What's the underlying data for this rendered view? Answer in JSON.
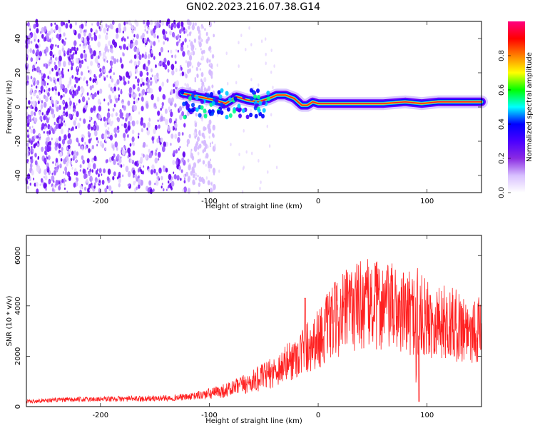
{
  "title": "GN02.2023.216.07.38.G14",
  "chart_data": [
    {
      "type": "heatmap",
      "xlabel": "Height of straight line (km)",
      "ylabel": "Frequency (Hz)",
      "xlim": [
        -268,
        150
      ],
      "ylim": [
        -50,
        50
      ],
      "xticks": [
        -200,
        -100,
        0,
        100
      ],
      "xtick_labels": [
        "-200",
        "-100",
        "0",
        "100"
      ],
      "yticks": [
        -40,
        -20,
        0,
        20,
        40
      ],
      "ytick_labels": [
        "-40",
        "-20",
        "0",
        "20",
        "40"
      ],
      "colorbar": {
        "label": "Normalized spectral amplitude",
        "range": [
          0,
          1
        ],
        "ticks": [
          0.0,
          0.2,
          0.4,
          0.6,
          0.8
        ],
        "tick_labels": [
          "0.0",
          "0.2",
          "0.4",
          "0.6",
          "0.8"
        ],
        "colors": [
          "#ffffff",
          "#d8c0ff",
          "#8a2be2",
          "#4b00ff",
          "#0000ff",
          "#00ffff",
          "#00ff00",
          "#ffff00",
          "#ff8000",
          "#ff0000",
          "#ff0080"
        ]
      },
      "noise_region_x": [
        -268,
        -115
      ],
      "ridge": [
        {
          "x": -125,
          "y": 8
        },
        {
          "x": -110,
          "y": 6
        },
        {
          "x": -95,
          "y": 4
        },
        {
          "x": -85,
          "y": 2
        },
        {
          "x": -75,
          "y": 6
        },
        {
          "x": -65,
          "y": 4
        },
        {
          "x": -55,
          "y": 3
        },
        {
          "x": -45,
          "y": 5
        },
        {
          "x": -38,
          "y": 7
        },
        {
          "x": -30,
          "y": 7
        },
        {
          "x": -22,
          "y": 5
        },
        {
          "x": -15,
          "y": 1
        },
        {
          "x": -10,
          "y": 1
        },
        {
          "x": -5,
          "y": 3
        },
        {
          "x": 0,
          "y": 2
        },
        {
          "x": 20,
          "y": 2
        },
        {
          "x": 60,
          "y": 2
        },
        {
          "x": 80,
          "y": 3
        },
        {
          "x": 95,
          "y": 2
        },
        {
          "x": 110,
          "y": 3
        },
        {
          "x": 130,
          "y": 3
        },
        {
          "x": 150,
          "y": 3
        }
      ]
    },
    {
      "type": "line",
      "xlabel": "Height of straight line (km)",
      "ylabel": "SNR (10 * v/v)",
      "xlim": [
        -268,
        150
      ],
      "ylim": [
        0,
        6800
      ],
      "xticks": [
        -200,
        -100,
        0,
        100
      ],
      "xtick_labels": [
        "-200",
        "-100",
        "0",
        "100"
      ],
      "yticks": [
        0,
        2000,
        4000,
        6000
      ],
      "ytick_labels": [
        "0",
        "2000",
        "4000",
        "6000"
      ],
      "color": "#ff2020",
      "series": [
        {
          "x": [
            -268,
            -250,
            -200,
            -150,
            -120,
            -100,
            -80,
            -60,
            -40,
            -20,
            -10,
            0,
            10,
            20,
            30,
            40,
            50,
            60,
            70,
            80,
            88,
            92,
            95,
            100,
            110,
            120,
            130,
            140,
            150
          ],
          "y": [
            200,
            250,
            300,
            320,
            380,
            500,
            700,
            1000,
            1400,
            2000,
            2400,
            2700,
            3200,
            3600,
            3900,
            4100,
            4000,
            4000,
            3900,
            3700,
            3700,
            3300,
            3600,
            3500,
            3400,
            3300,
            3200,
            3100,
            3000
          ]
        }
      ]
    }
  ]
}
